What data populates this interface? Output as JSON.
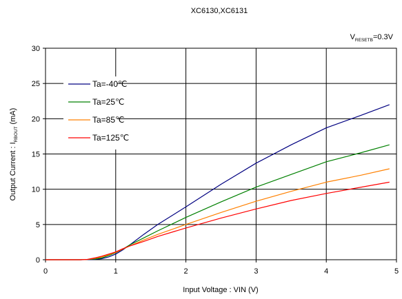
{
  "chart_data": {
    "type": "line",
    "title": "XC6130,XC6131",
    "condition": {
      "prefix": "V",
      "subscript": "RESETB",
      "suffix": "=0.3V"
    },
    "xlabel": "Input Voltage : VIN (V)",
    "ylabel": {
      "prefix": "Output Current : I",
      "subscript": "RBOUT",
      "suffix": " (mA)"
    },
    "xlim": [
      0,
      5
    ],
    "ylim": [
      0,
      30
    ],
    "xticks": [
      "0",
      "1",
      "2",
      "3",
      "4",
      "5"
    ],
    "yticks": [
      "0",
      "5",
      "10",
      "15",
      "20",
      "25",
      "30"
    ],
    "grid": true,
    "legend_position": "top-left",
    "series": [
      {
        "name": "Ta=-40℃",
        "color": "#000080",
        "x": [
          0,
          0.5,
          0.7,
          0.8,
          0.9,
          1.0,
          1.1,
          1.2,
          1.4,
          1.6,
          2.0,
          2.5,
          3.0,
          3.5,
          4.0,
          4.5,
          4.9
        ],
        "y": [
          0,
          0,
          0.05,
          0.15,
          0.4,
          0.8,
          1.4,
          2.1,
          3.6,
          5.0,
          7.5,
          10.7,
          13.7,
          16.3,
          18.7,
          20.5,
          22.0
        ]
      },
      {
        "name": "Ta=25℃",
        "color": "#008000",
        "x": [
          0,
          0.5,
          0.7,
          0.8,
          0.9,
          1.0,
          1.1,
          1.2,
          1.4,
          1.6,
          2.0,
          2.5,
          3.0,
          3.5,
          4.0,
          4.5,
          4.9
        ],
        "y": [
          0,
          0,
          0.1,
          0.25,
          0.6,
          1.0,
          1.5,
          2.1,
          3.1,
          4.1,
          6.0,
          8.2,
          10.3,
          12.1,
          13.9,
          15.2,
          16.3
        ]
      },
      {
        "name": "Ta=85℃",
        "color": "#ff8000",
        "x": [
          0,
          0.5,
          0.6,
          0.7,
          0.8,
          0.9,
          1.0,
          1.1,
          1.2,
          1.4,
          1.6,
          2.0,
          2.5,
          3.0,
          3.5,
          4.0,
          4.5,
          4.9
        ],
        "y": [
          0,
          0,
          0.05,
          0.2,
          0.4,
          0.7,
          1.05,
          1.5,
          1.95,
          2.8,
          3.6,
          5.0,
          6.7,
          8.3,
          9.7,
          11.0,
          12.0,
          12.9
        ]
      },
      {
        "name": "Ta=125℃",
        "color": "#ff0000",
        "x": [
          0,
          0.5,
          0.6,
          0.7,
          0.8,
          0.9,
          1.0,
          1.1,
          1.2,
          1.4,
          1.6,
          2.0,
          2.5,
          3.0,
          3.5,
          4.0,
          4.5,
          4.9
        ],
        "y": [
          0,
          0,
          0.05,
          0.25,
          0.5,
          0.8,
          1.1,
          1.55,
          1.95,
          2.6,
          3.3,
          4.5,
          5.9,
          7.2,
          8.4,
          9.4,
          10.3,
          11.0
        ]
      }
    ]
  }
}
